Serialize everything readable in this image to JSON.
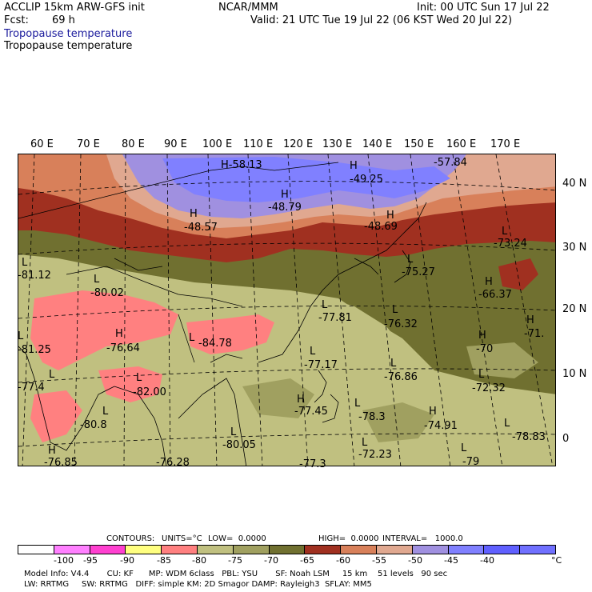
{
  "header": {
    "model": "ACCLIP 15km ARW-GFS init",
    "org": "NCAR/MMM",
    "init": "Init: 00 UTC Sun 17 Jul 22",
    "fcst_label": "Fcst:",
    "fcst_value": "69 h",
    "valid": "Valid: 21 UTC Tue 19 Jul 22 (06 KST Wed 20 Jul 22)",
    "field_title_1": "Tropopause temperature",
    "field_title_2": "Tropopause temperature"
  },
  "map": {
    "longitude_labels": [
      "60 E",
      "70 E",
      "80 E",
      "90 E",
      "100 E",
      "110 E",
      "120 E",
      "130 E",
      "140 E",
      "150 E",
      "160 E",
      "170 E"
    ],
    "latitude_labels": [
      "40 N",
      "30 N",
      "20 N",
      "10 N",
      "0"
    ],
    "highs_lows": [
      {
        "mark": "H",
        "value": "-58.13"
      },
      {
        "mark": "H",
        "value": "-49.25"
      },
      {
        "mark": "",
        "value": "-57.84"
      },
      {
        "mark": "H",
        "value": "-48.79"
      },
      {
        "mark": "H",
        "value": "-48.57"
      },
      {
        "mark": "H",
        "value": "-48.69"
      },
      {
        "mark": "L",
        "value": "-73.24"
      },
      {
        "mark": "L",
        "value": "-81.12"
      },
      {
        "mark": "L",
        "value": "-80.02"
      },
      {
        "mark": "L",
        "value": "-75.27"
      },
      {
        "mark": "H",
        "value": "-66.37"
      },
      {
        "mark": "L",
        "value": "-77.81"
      },
      {
        "mark": "L",
        "value": "-76.32"
      },
      {
        "mark": "H",
        "value": "-71."
      },
      {
        "mark": "H",
        "value": "-76.64"
      },
      {
        "mark": "L",
        "value": "-84.78"
      },
      {
        "mark": "L",
        "value": "-81.25"
      },
      {
        "mark": "H",
        "value": "-70"
      },
      {
        "mark": "L",
        "value": "-77.17"
      },
      {
        "mark": "L",
        "value": "-76.86"
      },
      {
        "mark": "L",
        "value": "-72.32"
      },
      {
        "mark": "L",
        "value": "-77.4"
      },
      {
        "mark": "L",
        "value": "-82.00"
      },
      {
        "mark": "H",
        "value": "-77.45"
      },
      {
        "mark": "L",
        "value": "-78.3"
      },
      {
        "mark": "H",
        "value": "-74.91"
      },
      {
        "mark": "L",
        "value": "-80.8"
      },
      {
        "mark": "L",
        "value": "-78.83"
      },
      {
        "mark": "L",
        "value": "-80.05"
      },
      {
        "mark": "L",
        "value": "-72.23"
      },
      {
        "mark": "H",
        "value": "-76.85"
      },
      {
        "mark": "",
        "value": "-76.28"
      },
      {
        "mark": "",
        "value": "-77.3"
      },
      {
        "mark": "L",
        "value": "-79"
      }
    ]
  },
  "contours": {
    "label": "CONTOURS:",
    "units": "UNITS=°C",
    "low": "LOW=  0.0000",
    "high": "HIGH=  0.0000",
    "interval": "INTERVAL=   1000.0"
  },
  "colorbar": {
    "colors": [
      "#ffffff",
      "#ff80ff",
      "#ff40d0",
      "#ffff80",
      "#ff8080",
      "#c0c080",
      "#a0a060",
      "#707030",
      "#a03020",
      "#d8805a",
      "#e0a890",
      "#a090e0",
      "#8080ff",
      "#6060ff",
      "#7070ff"
    ],
    "labels": [
      "-100",
      "-95",
      "-90",
      "-85",
      "-80",
      "-75",
      "-70",
      "-65",
      "-60",
      "-55",
      "-50",
      "-45",
      "-40",
      "°C"
    ]
  },
  "footer": {
    "line1": "Model Info: V4.4       CU: KF      MP: WDM 6class   PBL: YSU       SF: Noah LSM     15 km    51 levels   90 sec",
    "line2": "LW: RRTMG     SW: RRTMG   DIFF: simple KM: 2D Smagor DAMP: Rayleigh3  SFLAY: MM5"
  }
}
